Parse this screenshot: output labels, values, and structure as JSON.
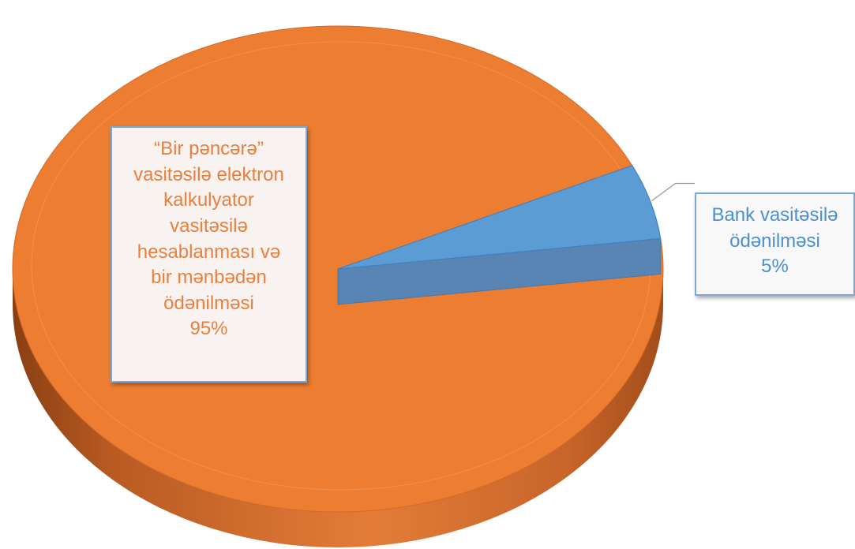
{
  "chart_data": {
    "type": "pie",
    "is_3d": true,
    "slices": [
      {
        "label": "“Bir pəncərə” vasitəsilə elektron kalkulyator vasitəsilə hesablanması və bir mənbədən ödənilməsi",
        "value": 95,
        "display": "95%",
        "color": "#ed7d31"
      },
      {
        "label": "Bank vasitəsilə ödənilməsi",
        "value": 5,
        "display": "5%",
        "color": "#5b9bd5"
      }
    ],
    "data_labels": {
      "main_lines": [
        "“Bir pəncərə”",
        "vasitəsilə elektron",
        "kalkulyator",
        "vasitəsilə",
        "hesablanması və",
        "bir mənbədən",
        "ödənilməsi",
        "95%"
      ],
      "side_lines": [
        "Bank vasitəsilə",
        "ödənilməsi",
        "5%"
      ]
    }
  }
}
